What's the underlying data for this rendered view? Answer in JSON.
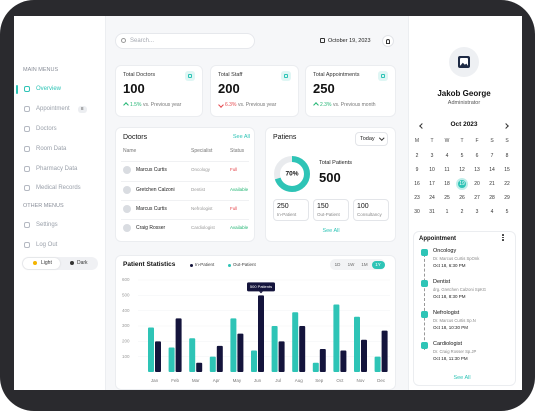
{
  "sidebar": {
    "main_label": "MAIN MENUS",
    "main_items": [
      "Overview",
      "Appointment",
      "Doctors",
      "Room Data",
      "Pharmacy Data",
      "Medical Records"
    ],
    "badge": "8",
    "other_label": "OTHER MENUS",
    "other_items": [
      "Settings",
      "Log Out"
    ],
    "theme": [
      "Light",
      "Dark"
    ]
  },
  "topbar": {
    "search_placeholder": "Search...",
    "date": "October 19, 2023"
  },
  "stats": [
    {
      "title": "Total Doctors",
      "value": 100,
      "change": "1.5%",
      "note": "vs. Previous year",
      "color": "#22b573"
    },
    {
      "title": "Total Staff",
      "value": 200,
      "change": "6.3%",
      "note": "vs. Previous year",
      "color": "#e5484d"
    },
    {
      "title": "Total Appointments",
      "value": 250,
      "change": "2.3%",
      "note": "vs. Previous month",
      "color": "#22b573"
    }
  ],
  "doctors": {
    "title": "Doctors",
    "see_all": "See All",
    "columns": [
      "Name",
      "Specialist",
      "Status"
    ],
    "rows": [
      {
        "name": "Marcus Curtis",
        "specialist": "Oncology",
        "status": "Full",
        "status_color": "#e5484d"
      },
      {
        "name": "Gretchen Calzoni",
        "specialist": "Dentist",
        "status": "Available",
        "status_color": "#22b573"
      },
      {
        "name": "Marcus Curtis",
        "specialist": "Nefrologist",
        "status": "Full",
        "status_color": "#e5484d"
      },
      {
        "name": "Craig Rosser",
        "specialist": "Cardiologist",
        "status": "Available",
        "status_color": "#22b573"
      }
    ]
  },
  "patients": {
    "title": "Patiens",
    "filter": "Today",
    "percent": 70,
    "percent_label": "70%",
    "total_label": "Total Patients",
    "total": 500,
    "breakdown": [
      {
        "value": 250,
        "label": "In-Patient"
      },
      {
        "value": 150,
        "label": "Out-Patient"
      },
      {
        "value": 100,
        "label": "Consultancy"
      }
    ],
    "see_all": "See All"
  },
  "statistics": {
    "title": "Patient Statistics",
    "ranges": [
      "1D",
      "1W",
      "1M",
      "1Y"
    ],
    "active_range": 3,
    "categories": [
      "Jan",
      "Feb",
      "Mar",
      "Apr",
      "May",
      "Jun",
      "Jul",
      "Aug",
      "Sep",
      "Oct",
      "Nov",
      "Dec"
    ],
    "series": [
      {
        "name": "In-Patient",
        "color": "#14143c",
        "values": [
          200,
          350,
          60,
          170,
          250,
          500,
          200,
          300,
          150,
          140,
          210,
          270
        ]
      },
      {
        "name": "Out-Patient",
        "color": "#2ec4b6",
        "values": [
          290,
          160,
          220,
          100,
          350,
          140,
          300,
          390,
          60,
          440,
          360,
          100
        ]
      }
    ],
    "ylim": [
      0,
      600
    ],
    "yticks": [
      100,
      200,
      300,
      400,
      500,
      600
    ],
    "tooltip": "500 Patients",
    "tooltip_index": 5
  },
  "profile": {
    "name": "Jakob George",
    "role": "Administrator"
  },
  "calendar": {
    "month": "Oct 2023",
    "weekdays": [
      "M",
      "T",
      "W",
      "T",
      "F",
      "S",
      "S"
    ],
    "weeks": [
      [
        2,
        3,
        4,
        5,
        6,
        7,
        8
      ],
      [
        9,
        10,
        11,
        12,
        13,
        14,
        15
      ],
      [
        16,
        17,
        18,
        19,
        20,
        21,
        22
      ],
      [
        23,
        24,
        25,
        26,
        27,
        28,
        29
      ],
      [
        30,
        31,
        1,
        2,
        3,
        4,
        5
      ]
    ],
    "selected": 19
  },
  "appointments": {
    "title": "Appointment",
    "items": [
      {
        "title": "Oncology",
        "doctor": "Dr. Marcus Curtis SpOnk",
        "time": "Oct 18, 6:30 PM"
      },
      {
        "title": "Dentist",
        "doctor": "drg. Gretchen Calzoni SpKG",
        "time": "Oct 18, 8:30 PM"
      },
      {
        "title": "Nefrologist",
        "doctor": "Dr. Marcus Curtis Sp.N",
        "time": "Oct 18, 10:30 PM"
      },
      {
        "title": "Cardiologist",
        "doctor": "Dr. Craig Rosser Sp.JP",
        "time": "Oct 18, 11:30 PM"
      }
    ],
    "see_all": "See All"
  }
}
